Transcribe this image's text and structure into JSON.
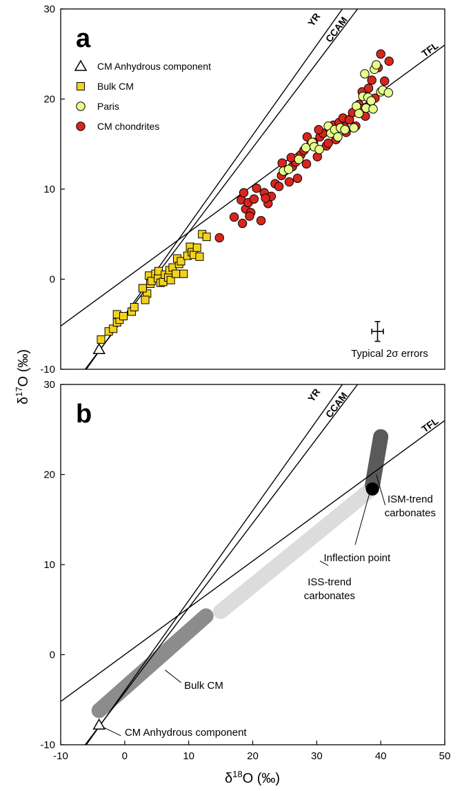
{
  "figure": {
    "y_axis_label_main": "δ",
    "y_axis_label_sup": "17",
    "y_axis_label_rest": "O  (‰)",
    "x_axis_label_main": "δ",
    "x_axis_label_sup": "18",
    "x_axis_label_rest": "O (‰)"
  },
  "chart_data": [
    {
      "panel": "a",
      "panel_label": "a",
      "type": "scatter",
      "xlim": [
        -10,
        50
      ],
      "ylim": [
        -10,
        30
      ],
      "x_ticks": [],
      "y_ticks": [
        "-10",
        "0",
        "10",
        "20",
        "30"
      ],
      "y_tick_values": [
        -10,
        0,
        10,
        20,
        30
      ],
      "reference_lines": [
        {
          "name": "YR",
          "slope": 1.0,
          "intercept": -4.0,
          "label_at": [
            30,
            28.6
          ]
        },
        {
          "name": "CCAM",
          "slope": 0.94,
          "intercept": -4.2,
          "label_at": [
            33.5,
            27.5
          ]
        },
        {
          "name": "TFL",
          "slope": 0.52,
          "intercept": 0.0,
          "label_at": [
            48,
            25.2
          ]
        }
      ],
      "legend": {
        "placement": "top-left",
        "entries": [
          {
            "key": "anhydrous",
            "label": "CM Anhydrous component",
            "marker": "triangle",
            "color": "#ffffff"
          },
          {
            "key": "bulk",
            "label": "Bulk CM",
            "marker": "square",
            "color": "#f3d21c"
          },
          {
            "key": "paris",
            "label": "Paris",
            "marker": "circle",
            "color": "#e6ff8a"
          },
          {
            "key": "cm",
            "label": "CM chondrites",
            "marker": "circle",
            "color": "#d7261e"
          }
        ]
      },
      "annotation": "Typical 2σ errors",
      "series": [
        {
          "key": "bulk",
          "marker": "square",
          "color": "#f3d21c",
          "points": [
            [
              -3.7,
              -6.7
            ],
            [
              -2.5,
              -5.8
            ],
            [
              -1.8,
              -5.5
            ],
            [
              -1.2,
              -4.8
            ],
            [
              -0.8,
              -4.5
            ],
            [
              -1.2,
              -3.9
            ],
            [
              -0.2,
              -4.1
            ],
            [
              1.1,
              -3.6
            ],
            [
              1.5,
              -3.1
            ],
            [
              3.5,
              -1.6
            ],
            [
              4.0,
              -0.5
            ],
            [
              3.8,
              0.4
            ],
            [
              4.2,
              -0.2
            ],
            [
              4.8,
              0.6
            ],
            [
              5.2,
              0.1
            ],
            [
              5.6,
              -0.4
            ],
            [
              5.3,
              0.9
            ],
            [
              6.0,
              -0.3
            ],
            [
              6.3,
              0.5
            ],
            [
              6.8,
              0.2
            ],
            [
              7.0,
              1.0
            ],
            [
              7.5,
              1.3
            ],
            [
              7.2,
              -0.1
            ],
            [
              8.0,
              0.6
            ],
            [
              8.5,
              1.7
            ],
            [
              8.2,
              2.3
            ],
            [
              8.8,
              2.0
            ],
            [
              9.2,
              0.6
            ],
            [
              9.8,
              2.6
            ],
            [
              10.2,
              3.6
            ],
            [
              10.5,
              3.0
            ],
            [
              10.8,
              2.7
            ],
            [
              11.3,
              3.5
            ],
            [
              11.7,
              2.5
            ],
            [
              12.1,
              5.0
            ],
            [
              12.8,
              4.7
            ],
            [
              3.2,
              -2.3
            ],
            [
              2.8,
              -1.0
            ]
          ]
        },
        {
          "key": "cm",
          "marker": "circle",
          "color": "#d7261e",
          "points": [
            [
              14.8,
              4.6
            ],
            [
              17.1,
              6.9
            ],
            [
              18.2,
              8.8
            ],
            [
              18.6,
              9.6
            ],
            [
              18.4,
              6.2
            ],
            [
              18.9,
              7.8
            ],
            [
              19.3,
              8.5
            ],
            [
              19.7,
              7.4
            ],
            [
              20.2,
              8.9
            ],
            [
              20.6,
              10.1
            ],
            [
              21.3,
              6.5
            ],
            [
              21.8,
              9.6
            ],
            [
              22.4,
              8.4
            ],
            [
              22.9,
              9.2
            ],
            [
              23.5,
              10.6
            ],
            [
              24.1,
              10.3
            ],
            [
              24.5,
              11.5
            ],
            [
              25.0,
              12.0
            ],
            [
              25.7,
              10.8
            ],
            [
              26.2,
              12.5
            ],
            [
              26.7,
              13.0
            ],
            [
              27.0,
              11.2
            ],
            [
              27.5,
              13.8
            ],
            [
              28.0,
              14.3
            ],
            [
              28.4,
              12.8
            ],
            [
              29.0,
              14.9
            ],
            [
              29.5,
              15.2
            ],
            [
              30.1,
              13.6
            ],
            [
              30.5,
              15.8
            ],
            [
              31.0,
              16.2
            ],
            [
              31.5,
              14.8
            ],
            [
              32.0,
              16.7
            ],
            [
              32.6,
              17.1
            ],
            [
              33.0,
              15.5
            ],
            [
              33.5,
              17.4
            ],
            [
              34.1,
              17.9
            ],
            [
              34.6,
              16.3
            ],
            [
              35.1,
              17.7
            ],
            [
              35.6,
              18.5
            ],
            [
              36.1,
              17.0
            ],
            [
              36.6,
              19.4
            ],
            [
              37.1,
              20.8
            ],
            [
              37.6,
              18.1
            ],
            [
              38.1,
              21.2
            ],
            [
              38.6,
              22.1
            ],
            [
              39.1,
              20.1
            ],
            [
              39.6,
              23.5
            ],
            [
              40.0,
              25.0
            ],
            [
              40.6,
              22.0
            ],
            [
              41.3,
              24.2
            ],
            [
              19.5,
              7.0
            ],
            [
              22.0,
              9.0
            ],
            [
              26.0,
              13.5
            ],
            [
              28.5,
              15.8
            ],
            [
              31.8,
              15.1
            ],
            [
              34.3,
              16.9
            ],
            [
              36.9,
              18.9
            ],
            [
              38.4,
              19.6
            ],
            [
              24.6,
              12.9
            ],
            [
              30.3,
              16.6
            ]
          ]
        },
        {
          "key": "paris",
          "marker": "circle",
          "color": "#e6ff8a",
          "points": [
            [
              24.8,
              12.0
            ],
            [
              25.6,
              12.2
            ],
            [
              27.2,
              13.3
            ],
            [
              28.3,
              14.6
            ],
            [
              29.3,
              15.2
            ],
            [
              29.6,
              14.7
            ],
            [
              30.4,
              14.4
            ],
            [
              31.8,
              17.0
            ],
            [
              32.2,
              16.2
            ],
            [
              32.8,
              16.6
            ],
            [
              33.3,
              15.8
            ],
            [
              33.7,
              16.8
            ],
            [
              34.4,
              16.6
            ],
            [
              35.8,
              16.8
            ],
            [
              36.2,
              19.2
            ],
            [
              36.6,
              18.4
            ],
            [
              37.2,
              20.3
            ],
            [
              37.7,
              19.0
            ],
            [
              38.0,
              20.2
            ],
            [
              38.5,
              19.8
            ],
            [
              38.8,
              18.9
            ],
            [
              39.0,
              23.3
            ],
            [
              39.3,
              23.8
            ],
            [
              40.0,
              20.8
            ],
            [
              40.3,
              21.0
            ],
            [
              41.2,
              20.7
            ],
            [
              37.5,
              22.8
            ]
          ]
        },
        {
          "key": "anhydrous",
          "marker": "triangle",
          "color": "#ffffff",
          "points": [
            [
              -4.0,
              -7.8
            ]
          ]
        }
      ],
      "error_bar": {
        "x": 39.5,
        "y": -5.8,
        "dx": 0.9,
        "dy": 1.1
      }
    },
    {
      "panel": "b",
      "panel_label": "b",
      "type": "area",
      "xlim": [
        -10,
        50
      ],
      "ylim": [
        -10,
        30
      ],
      "x_ticks": [
        "-10",
        "0",
        "10",
        "20",
        "30",
        "40",
        "50"
      ],
      "x_tick_values": [
        -10,
        0,
        10,
        20,
        30,
        40,
        50
      ],
      "y_ticks": [
        "-10",
        "0",
        "10",
        "20",
        "30"
      ],
      "y_tick_values": [
        -10,
        0,
        10,
        20,
        30
      ],
      "reference_lines": [
        {
          "name": "YR",
          "slope": 1.0,
          "intercept": -4.0,
          "label_at": [
            30,
            28.6
          ]
        },
        {
          "name": "CCAM",
          "slope": 0.94,
          "intercept": -4.2,
          "label_at": [
            33.5,
            27.5
          ]
        },
        {
          "name": "TFL",
          "slope": 0.52,
          "intercept": 0.0,
          "label_at": [
            48,
            25.2
          ]
        }
      ],
      "trends": [
        {
          "key": "bulk",
          "label": "Bulk CM",
          "from": [
            -4.0,
            -6.2
          ],
          "to": [
            12.7,
            4.3
          ],
          "color": "#8c8c8c"
        },
        {
          "key": "iss",
          "label": "ISS-trend carbonates",
          "from": [
            15.0,
            4.8
          ],
          "to": [
            38.2,
            18.2
          ],
          "color": "#dcdcdc"
        },
        {
          "key": "ism",
          "label": "ISM-trend carbonates",
          "from": [
            38.7,
            18.8
          ],
          "to": [
            40.0,
            24.2
          ],
          "color": "#5a5a5a"
        }
      ],
      "points": [
        {
          "key": "inflection",
          "label": "Inflection point",
          "x": 38.7,
          "y": 18.4,
          "marker": "circle",
          "color": "#000000"
        },
        {
          "key": "anhydrous",
          "label": "CM Anhydrous component",
          "x": -4.0,
          "y": -7.8,
          "marker": "triangle",
          "color": "#ffffff"
        }
      ],
      "labels": {
        "bulk": [
          "Bulk CM"
        ],
        "iss": [
          "ISS-trend",
          "carbonates"
        ],
        "ism": [
          "ISM-trend",
          "carbonates"
        ],
        "inflection": [
          "Inflection point"
        ],
        "anhydrous": [
          "CM Anhydrous component"
        ]
      }
    }
  ]
}
